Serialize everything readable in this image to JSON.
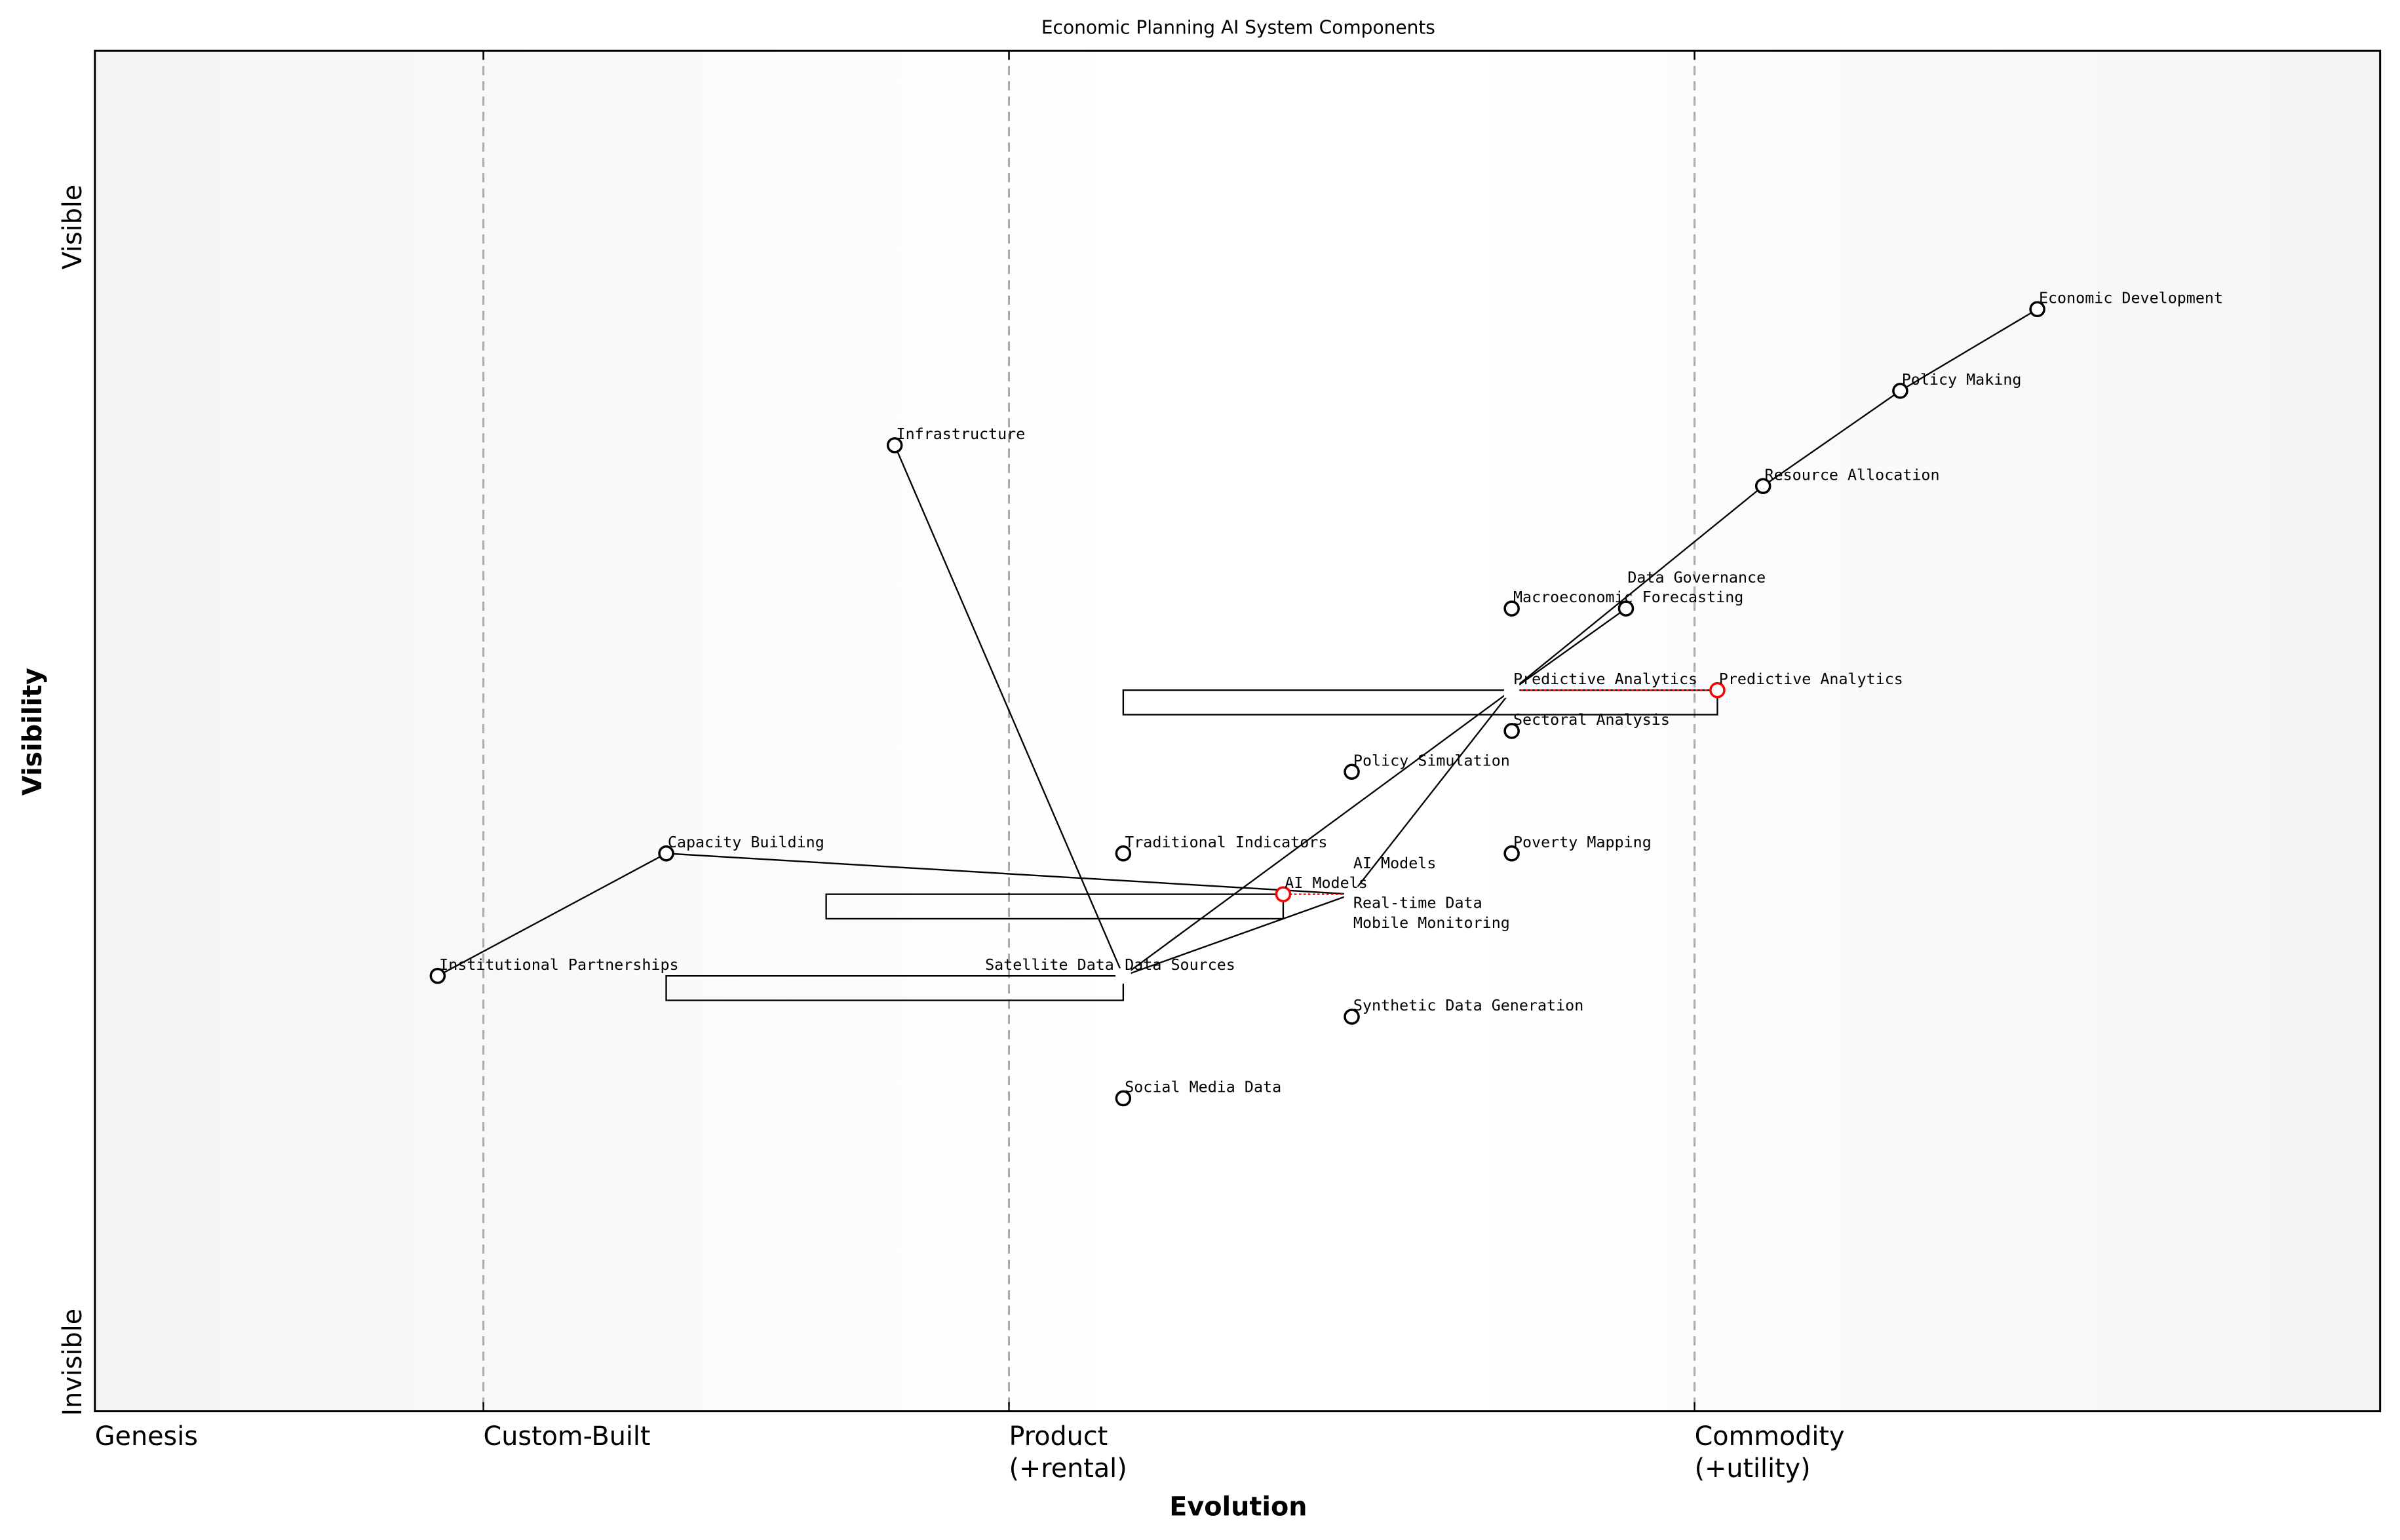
{
  "chart_data": {
    "type": "wardley-map",
    "title": "Economic Planning AI System Components",
    "xlabel": "Evolution",
    "ylabel": "Visibility",
    "xlim": [
      0,
      1
    ],
    "ylim": [
      0,
      1
    ],
    "x_stages": [
      {
        "label": "Genesis",
        "at": 0.0
      },
      {
        "label": "Custom-Built",
        "at": 0.17
      },
      {
        "label": "Product",
        "label2": "(+rental)",
        "at": 0.4
      },
      {
        "label": "Commodity",
        "label2": "(+utility)",
        "at": 0.7
      }
    ],
    "y_labels": {
      "top": "Visible",
      "bottom": "Invisible"
    },
    "colors": {
      "component": "#000000",
      "evolved": "#ff0000",
      "stage_line": "#aaaaaa",
      "background_edge": "#f4f4f4",
      "background_mid": "#ffffff"
    },
    "components": [
      {
        "name": "Economic Development",
        "evolution": 0.85,
        "visibility": 0.81,
        "marker": true
      },
      {
        "name": "Policy Making",
        "evolution": 0.79,
        "visibility": 0.75,
        "marker": true
      },
      {
        "name": "Resource Allocation",
        "evolution": 0.73,
        "visibility": 0.68,
        "marker": true
      },
      {
        "name": "Infrastructure",
        "evolution": 0.35,
        "visibility": 0.71,
        "marker": true
      },
      {
        "name": "Macroeconomic Forecasting",
        "evolution": 0.62,
        "visibility": 0.59,
        "marker": true
      },
      {
        "name": "Data Governance",
        "evolution": 0.67,
        "visibility": 0.59,
        "marker": true
      },
      {
        "name": "Predictive Analytics",
        "evolution": 0.62,
        "visibility": 0.53,
        "marker": false
      },
      {
        "name": "Sectoral Analysis",
        "evolution": 0.62,
        "visibility": 0.5,
        "marker": true
      },
      {
        "name": "Policy Simulation",
        "evolution": 0.55,
        "visibility": 0.47,
        "marker": true
      },
      {
        "name": "Traditional Indicators",
        "evolution": 0.45,
        "visibility": 0.41,
        "marker": true
      },
      {
        "name": "Poverty Mapping",
        "evolution": 0.62,
        "visibility": 0.41,
        "marker": true
      },
      {
        "name": "Capacity Building",
        "evolution": 0.25,
        "visibility": 0.41,
        "marker": true
      },
      {
        "name": "AI Models",
        "evolution": 0.55,
        "visibility": 0.38,
        "marker": false
      },
      {
        "name": "Real-time Data",
        "evolution": 0.55,
        "visibility": 0.38,
        "marker": false
      },
      {
        "name": "Mobile Monitoring",
        "evolution": 0.55,
        "visibility": 0.38,
        "marker": false
      },
      {
        "name": "Institutional Partnerships",
        "evolution": 0.15,
        "visibility": 0.32,
        "marker": true
      },
      {
        "name": "Data Sources",
        "evolution": 0.45,
        "visibility": 0.32,
        "marker": false
      },
      {
        "name": "Satellite Data",
        "evolution": 0.45,
        "visibility": 0.32,
        "marker": false
      },
      {
        "name": "Synthetic Data Generation",
        "evolution": 0.55,
        "visibility": 0.29,
        "marker": true
      },
      {
        "name": "Social Media Data",
        "evolution": 0.45,
        "visibility": 0.23,
        "marker": true
      }
    ],
    "evolutions": [
      {
        "name": "Predictive Analytics",
        "from": 0.62,
        "to": 0.71,
        "visibility": 0.53
      },
      {
        "name": "AI Models",
        "from": 0.55,
        "to": 0.52,
        "visibility": 0.38
      }
    ],
    "links": [
      [
        "Economic Development",
        "Policy Making"
      ],
      [
        "Policy Making",
        "Resource Allocation"
      ],
      [
        "Resource Allocation",
        "Predictive Analytics"
      ],
      [
        "Data Governance",
        "Predictive Analytics"
      ],
      [
        "Predictive Analytics",
        "Data Sources"
      ],
      [
        "Predictive Analytics",
        "AI Models"
      ],
      [
        "Infrastructure",
        "Data Sources"
      ],
      [
        "Data Sources",
        "AI Models"
      ],
      [
        "Capacity Building",
        "AI Models"
      ],
      [
        "Institutional Partnerships",
        "Capacity Building"
      ]
    ],
    "pipelines": [
      {
        "visibility": 0.53,
        "evolution_start": 0.45,
        "evolution_end": 0.71
      },
      {
        "visibility": 0.38,
        "evolution_start": 0.32,
        "evolution_end": 0.52
      },
      {
        "visibility": 0.32,
        "evolution_start": 0.25,
        "evolution_end": 0.45
      }
    ]
  }
}
